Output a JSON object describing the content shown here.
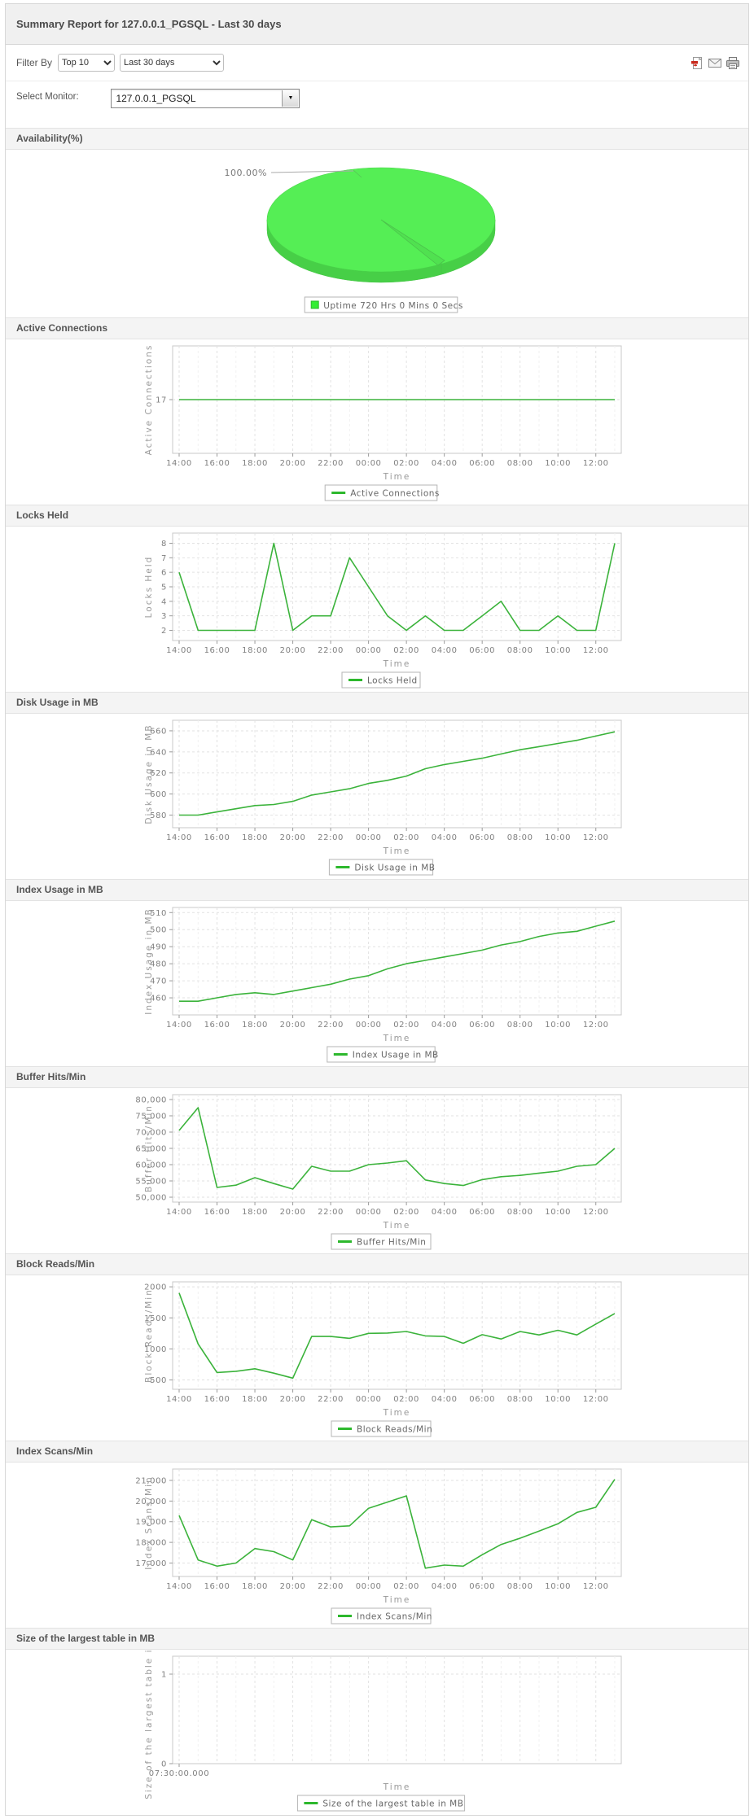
{
  "page": {
    "title": "Summary Report for 127.0.0.1_PGSQL - Last 30 days"
  },
  "filter": {
    "label": "Filter By",
    "top_select": "Top 10",
    "period_select": "Last 30 days",
    "icons": [
      "pdf-export",
      "email",
      "print"
    ]
  },
  "monitor": {
    "label": "Select Monitor:",
    "value": "127.0.0.1_PGSQL"
  },
  "time_axis": {
    "label": "Time",
    "ticks": [
      "14:00",
      "16:00",
      "18:00",
      "20:00",
      "22:00",
      "00:00",
      "02:00",
      "04:00",
      "06:00",
      "08:00",
      "10:00",
      "12:00"
    ]
  },
  "colors": {
    "line_green": "#3bb33b",
    "legend_swatch_green": "#2db82d",
    "pie_top_green": "#55ee55",
    "pie_side_green": "#47cf47"
  },
  "chart_data": [
    {
      "id": "availability",
      "type": "pie",
      "title": "Availability(%)",
      "percent_label": "100.00%",
      "value": 100,
      "legend_label": "Uptime 720 Hrs 0 Mins 0 Secs"
    },
    {
      "id": "active-connections",
      "type": "line",
      "title": "Active Connections",
      "ylabel": "Active Connections",
      "legend_label": "Active Connections",
      "xlabel": "Time",
      "ylim": [
        16,
        18
      ],
      "ytick_values": [
        17
      ],
      "ytick_labels": [
        "17"
      ],
      "values": [
        17,
        17,
        17,
        17,
        17,
        17,
        17,
        17,
        17,
        17,
        17,
        17,
        17,
        17,
        17,
        17,
        17,
        17,
        17,
        17,
        17,
        17,
        17,
        17
      ]
    },
    {
      "id": "locks-held",
      "type": "line",
      "title": "Locks Held",
      "ylabel": "Locks Held",
      "legend_label": "Locks Held",
      "xlabel": "Time",
      "ylim": [
        1.3,
        8.7
      ],
      "ytick_values": [
        2,
        3,
        4,
        5,
        6,
        7,
        8
      ],
      "ytick_labels": [
        "2",
        "3",
        "4",
        "5",
        "6",
        "7",
        "8"
      ],
      "values": [
        6,
        2,
        2,
        2,
        2,
        8,
        2,
        3,
        3,
        7,
        5,
        3,
        2,
        3,
        2,
        2,
        3,
        4,
        2,
        2,
        3,
        2,
        2,
        8
      ]
    },
    {
      "id": "disk-usage",
      "type": "line",
      "title": "Disk Usage in MB",
      "ylabel": "Disk Usage in MB",
      "legend_label": "Disk Usage in MB",
      "xlabel": "Time",
      "ylim": [
        568,
        670
      ],
      "ytick_values": [
        580,
        600,
        620,
        640,
        660
      ],
      "ytick_labels": [
        "580",
        "600",
        "620",
        "640",
        "660"
      ],
      "values": [
        580,
        580,
        583,
        586,
        589,
        590,
        593,
        599,
        602,
        605,
        610,
        613,
        617,
        624,
        628,
        631,
        634,
        638,
        642,
        645,
        648,
        651,
        655,
        659
      ]
    },
    {
      "id": "index-usage",
      "type": "line",
      "title": "Index Usage in MB",
      "ylabel": "Index Usage in MB",
      "legend_label": "Index Usage in MB",
      "xlabel": "Time",
      "ylim": [
        450,
        513
      ],
      "ytick_values": [
        460,
        470,
        480,
        490,
        500,
        510
      ],
      "ytick_labels": [
        "460",
        "470",
        "480",
        "490",
        "500",
        "510"
      ],
      "values": [
        458,
        458,
        460,
        462,
        463,
        462,
        464,
        466,
        468,
        471,
        473,
        477,
        480,
        482,
        484,
        486,
        488,
        491,
        493,
        496,
        498,
        499,
        502,
        505
      ]
    },
    {
      "id": "buffer-hits",
      "type": "line",
      "title": "Buffer Hits/Min",
      "ylabel": "Buffer Hits/Min",
      "legend_label": "Buffer Hits/Min",
      "xlabel": "Time",
      "ylim": [
        48500,
        81500
      ],
      "ytick_values": [
        50000,
        55000,
        60000,
        65000,
        70000,
        75000,
        80000
      ],
      "ytick_labels": [
        "50,000",
        "55,000",
        "60,000",
        "65,000",
        "70,000",
        "75,000",
        "80,000"
      ],
      "values": [
        70500,
        77500,
        53000,
        53700,
        56000,
        54200,
        52500,
        59500,
        58000,
        58000,
        60000,
        60500,
        61200,
        55300,
        54200,
        53600,
        55400,
        56300,
        56700,
        57400,
        58000,
        59500,
        60000,
        65000
      ]
    },
    {
      "id": "block-reads",
      "type": "line",
      "title": "Block Reads/Min",
      "ylabel": "Block Reads/Min",
      "legend_label": "Block Reads/Min",
      "xlabel": "Time",
      "ylim": [
        350,
        2080
      ],
      "ytick_values": [
        500,
        1000,
        1500,
        2000
      ],
      "ytick_labels": [
        "500",
        "1000",
        "1500",
        "2000"
      ],
      "values": [
        1900,
        1080,
        620,
        640,
        680,
        610,
        530,
        1200,
        1200,
        1170,
        1250,
        1255,
        1280,
        1210,
        1200,
        1090,
        1230,
        1160,
        1280,
        1225,
        1300,
        1225,
        1400,
        1570
      ]
    },
    {
      "id": "index-scans",
      "type": "line",
      "title": "Index Scans/Min",
      "ylabel": "Index Scans/Min",
      "legend_label": "Index Scans/Min",
      "xlabel": "Time",
      "ylim": [
        16350,
        21550
      ],
      "ytick_values": [
        17000,
        18000,
        19000,
        20000,
        21000
      ],
      "ytick_labels": [
        "17,000",
        "18,000",
        "19,000",
        "20,000",
        "21,000"
      ],
      "values": [
        19300,
        17150,
        16850,
        17000,
        17700,
        17550,
        17150,
        19100,
        18750,
        18800,
        19650,
        19950,
        20250,
        16750,
        16900,
        16850,
        17400,
        17900,
        18200,
        18550,
        18900,
        19450,
        19700,
        21050
      ]
    },
    {
      "id": "largest-table-size",
      "type": "line",
      "title": "Size of the largest table in MB",
      "ylabel": "Size of the largest table in MB",
      "legend_label": "Size of the largest table in MB",
      "xlabel": "Time",
      "ylim": [
        0,
        1.2
      ],
      "ytick_values": [
        0,
        1
      ],
      "ytick_labels": [
        "0",
        "1"
      ],
      "values": null,
      "xticks": [
        "07:30:00.000"
      ]
    }
  ]
}
